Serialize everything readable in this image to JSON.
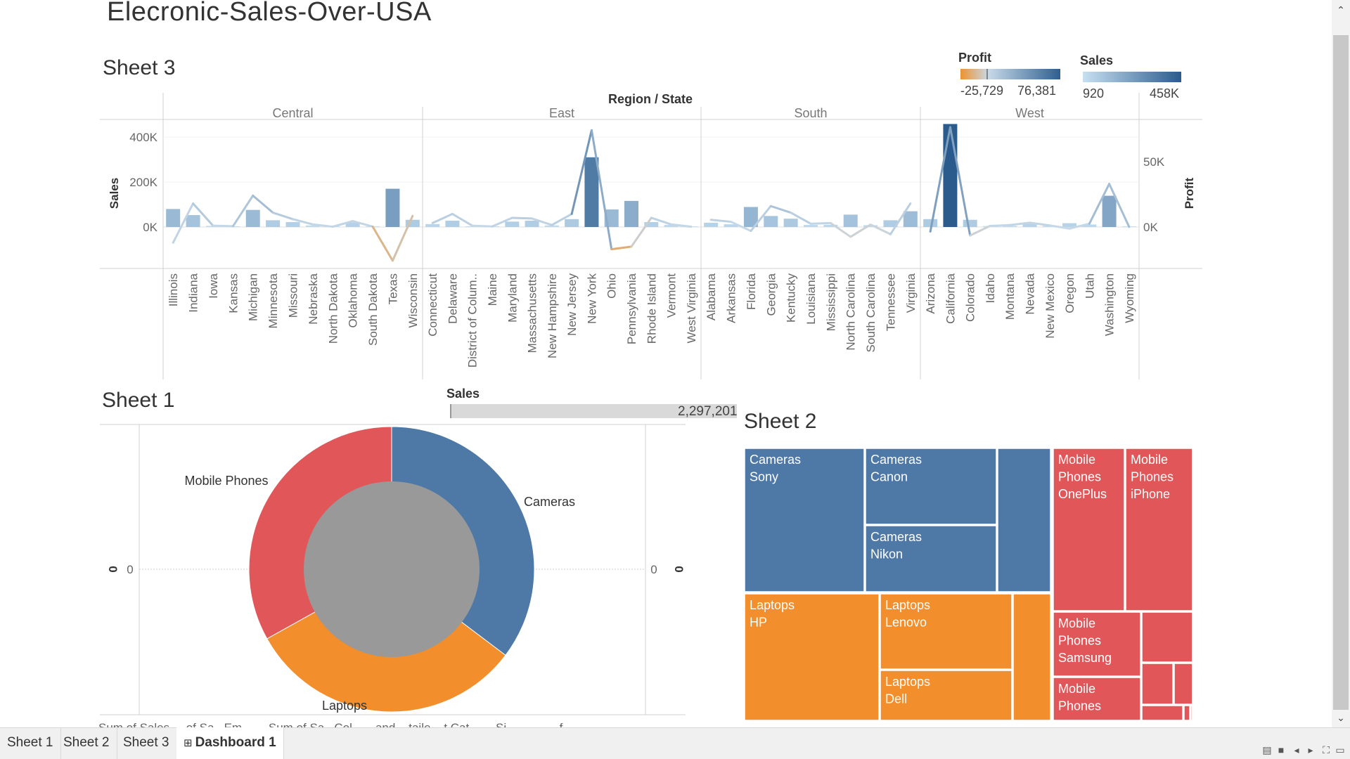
{
  "dashboard": {
    "title": "Elecronic-Sales-Over-USA"
  },
  "sheet3": {
    "title": "Sheet 3",
    "header": "Region  /  State",
    "y_left_label": "Sales",
    "y_right_label": "Profit",
    "left_ticks": [
      "400K",
      "200K",
      "0K"
    ],
    "right_ticks": [
      "50K",
      "0K"
    ],
    "legend_profit": {
      "title": "Profit",
      "min": "-25,729",
      "max": "76,381",
      "colors": [
        "#f0912e",
        "#c7d9e8",
        "#2e5f91"
      ]
    },
    "legend_sales": {
      "title": "Sales",
      "min": "920",
      "max": "458K",
      "colors": [
        "#c7e0f2",
        "#2b5b8c"
      ]
    }
  },
  "sheet1": {
    "title": "Sheet 1",
    "sales_filter_label": "Sales",
    "sales_filter_value": "2,297,201",
    "axis_label": "0",
    "axis_tick": "0",
    "bottom_text": "Sum of Sales  ...  of Sa...Em...  ...  Sum of Sa...Col...    ...and...  taile...  t Cat...  ...  Si...  ...    ...  ...  f"
  },
  "sheet2": {
    "title": "Sheet 2"
  },
  "tabs": [
    {
      "label": "Sheet 1",
      "active": false
    },
    {
      "label": "Sheet 2",
      "active": false
    },
    {
      "label": "Sheet 3",
      "active": false
    },
    {
      "label": "Dashboard 1",
      "active": true
    }
  ],
  "chart_data": [
    {
      "type": "bar",
      "title": "Sheet 3",
      "xlabel": "Region / State",
      "ylabel": "Sales",
      "y2label": "Profit",
      "ylim": [
        -90000,
        470000
      ],
      "y2lim": [
        -34000,
        88000
      ],
      "regions": [
        {
          "name": "Central",
          "states": [
            {
              "state": "Illinois",
              "sales": 80000,
              "profit": -12000
            },
            {
              "state": "Indiana",
              "sales": 53000,
              "profit": 18000
            },
            {
              "state": "Iowa",
              "sales": 5000,
              "profit": 1000
            },
            {
              "state": "Kansas",
              "sales": 3000,
              "profit": 600
            },
            {
              "state": "Michigan",
              "sales": 76000,
              "profit": 24000
            },
            {
              "state": "Minnesota",
              "sales": 30000,
              "profit": 11000
            },
            {
              "state": "Missouri",
              "sales": 22000,
              "profit": 6000
            },
            {
              "state": "Nebraska",
              "sales": 7000,
              "profit": 2000
            },
            {
              "state": "North Dakota",
              "sales": 1000,
              "profit": 200
            },
            {
              "state": "Oklahoma",
              "sales": 20000,
              "profit": 4500
            },
            {
              "state": "South Dakota",
              "sales": 1500,
              "profit": 300
            },
            {
              "state": "Texas",
              "sales": 170000,
              "profit": -25729
            },
            {
              "state": "Wisconsin",
              "sales": 32000,
              "profit": 8500
            }
          ]
        },
        {
          "name": "East",
          "states": [
            {
              "state": "Connecticut",
              "sales": 13000,
              "profit": 3000
            },
            {
              "state": "Delaware",
              "sales": 28000,
              "profit": 10000
            },
            {
              "state": "District of Colum..",
              "sales": 3000,
              "profit": 1000
            },
            {
              "state": "Maine",
              "sales": 1000,
              "profit": 400
            },
            {
              "state": "Maryland",
              "sales": 24000,
              "profit": 7000
            },
            {
              "state": "Massachusetts",
              "sales": 28000,
              "profit": 6500
            },
            {
              "state": "New Hampshire",
              "sales": 7000,
              "profit": 1500
            },
            {
              "state": "New Jersey",
              "sales": 35000,
              "profit": 10000
            },
            {
              "state": "New York",
              "sales": 310000,
              "profit": 74000
            },
            {
              "state": "Ohio",
              "sales": 78000,
              "profit": -17000
            },
            {
              "state": "Pennsylvania",
              "sales": 116000,
              "profit": -15000
            },
            {
              "state": "Rhode Island",
              "sales": 22000,
              "profit": 7000
            },
            {
              "state": "Vermont",
              "sales": 9000,
              "profit": 2000
            },
            {
              "state": "West Virginia",
              "sales": 1000,
              "profit": 200
            }
          ]
        },
        {
          "name": "South",
          "states": [
            {
              "state": "Alabama",
              "sales": 19000,
              "profit": 5500
            },
            {
              "state": "Arkansas",
              "sales": 12000,
              "profit": 4000
            },
            {
              "state": "Florida",
              "sales": 89000,
              "profit": -3000
            },
            {
              "state": "Georgia",
              "sales": 49000,
              "profit": 16000
            },
            {
              "state": "Kentucky",
              "sales": 37000,
              "profit": 11000
            },
            {
              "state": "Louisiana",
              "sales": 9000,
              "profit": 2500
            },
            {
              "state": "Mississippi",
              "sales": 10000,
              "profit": 3000
            },
            {
              "state": "North Carolina",
              "sales": 55000,
              "profit": -7500
            },
            {
              "state": "South Carolina",
              "sales": 8000,
              "profit": 1800
            },
            {
              "state": "Tennessee",
              "sales": 30000,
              "profit": -5500
            },
            {
              "state": "Virginia",
              "sales": 70000,
              "profit": 18000
            }
          ]
        },
        {
          "name": "West",
          "states": [
            {
              "state": "Arizona",
              "sales": 35000,
              "profit": -3500
            },
            {
              "state": "California",
              "sales": 458000,
              "profit": 76381
            },
            {
              "state": "Colorado",
              "sales": 32000,
              "profit": -6500
            },
            {
              "state": "Idaho",
              "sales": 4000,
              "profit": 800
            },
            {
              "state": "Montana",
              "sales": 5000,
              "profit": 1500
            },
            {
              "state": "Nevada",
              "sales": 16000,
              "profit": 3300
            },
            {
              "state": "New Mexico",
              "sales": 5000,
              "profit": 1200
            },
            {
              "state": "Oregon",
              "sales": 17000,
              "profit": -1200
            },
            {
              "state": "Utah",
              "sales": 11000,
              "profit": 2500
            },
            {
              "state": "Washington",
              "sales": 139000,
              "profit": 33000
            },
            {
              "state": "Wyoming",
              "sales": 920,
              "profit": 100
            }
          ]
        }
      ]
    },
    {
      "type": "pie",
      "title": "Sheet 1",
      "slices": [
        {
          "label": "Cameras",
          "share": 0.353,
          "color": "#4e79a7"
        },
        {
          "label": "Laptops",
          "share": 0.316,
          "color": "#f28e2b"
        },
        {
          "label": "Mobile Phones",
          "share": 0.331,
          "color": "#e15759"
        }
      ]
    },
    {
      "type": "treemap",
      "title": "Sheet 2",
      "groups": [
        {
          "category": "Cameras",
          "color": "#4e79a7",
          "items": [
            {
              "lines": [
                "Cameras",
                "Sony"
              ]
            },
            {
              "lines": [
                "Cameras",
                "Canon"
              ]
            },
            {
              "lines": [
                "Cameras",
                "Nikon"
              ]
            },
            {
              "lines": []
            }
          ]
        },
        {
          "category": "Laptops",
          "color": "#f28e2b",
          "items": [
            {
              "lines": [
                "Laptops",
                "HP"
              ]
            },
            {
              "lines": [
                "Laptops",
                "Lenovo"
              ]
            },
            {
              "lines": [
                "Laptops",
                "Dell"
              ]
            },
            {
              "lines": []
            }
          ]
        },
        {
          "category": "Mobile Phones",
          "color": "#e15759",
          "items": [
            {
              "lines": [
                "Mobile",
                "Phones",
                "OnePlus"
              ]
            },
            {
              "lines": [
                "Mobile",
                "Phones",
                "iPhone"
              ]
            },
            {
              "lines": [
                "Mobile",
                "Phones",
                "Samsung"
              ]
            },
            {
              "lines": [
                "Mobile",
                "Phones"
              ]
            },
            {
              "lines": []
            },
            {
              "lines": []
            },
            {
              "lines": []
            },
            {
              "lines": []
            },
            {
              "lines": []
            },
            {
              "lines": []
            }
          ]
        }
      ]
    }
  ]
}
